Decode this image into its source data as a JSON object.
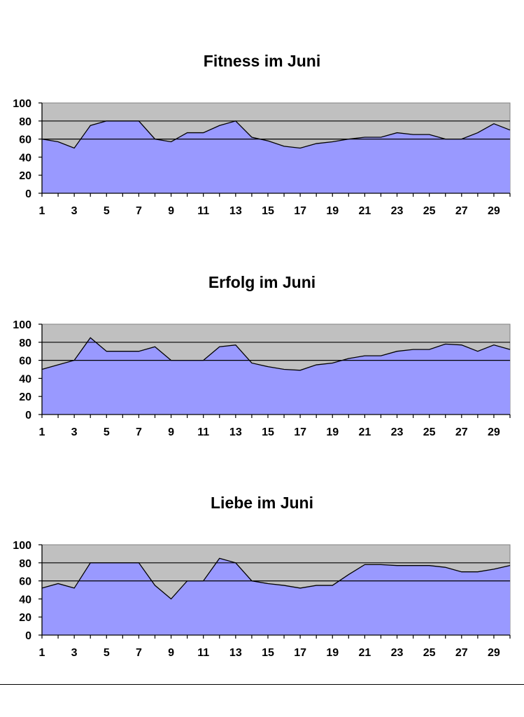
{
  "chart_data": [
    {
      "type": "area",
      "title": "Fitness im Juni",
      "x": [
        1,
        2,
        3,
        4,
        5,
        6,
        7,
        8,
        9,
        10,
        11,
        12,
        13,
        14,
        15,
        16,
        17,
        18,
        19,
        20,
        21,
        22,
        23,
        24,
        25,
        26,
        27,
        28,
        29,
        30
      ],
      "x_tick_labels": [
        "1",
        "3",
        "5",
        "7",
        "9",
        "11",
        "13",
        "15",
        "17",
        "19",
        "21",
        "23",
        "25",
        "27",
        "29"
      ],
      "y_tick_labels": [
        "0",
        "20",
        "40",
        "60",
        "80",
        "100"
      ],
      "ylim": [
        0,
        100
      ],
      "series": [
        {
          "values": [
            60,
            57,
            50,
            75,
            80,
            80,
            80,
            60,
            57,
            67,
            67,
            75,
            80,
            62,
            58,
            52,
            50,
            55,
            57,
            60,
            62,
            62,
            67,
            65,
            65,
            60,
            60,
            67,
            77,
            70
          ]
        }
      ],
      "reference_lines": [
        60,
        80
      ],
      "colors": {
        "area": "#9999ff",
        "plot_bg": "#c0c0c0"
      }
    },
    {
      "type": "area",
      "title": "Erfolg im Juni",
      "x": [
        1,
        2,
        3,
        4,
        5,
        6,
        7,
        8,
        9,
        10,
        11,
        12,
        13,
        14,
        15,
        16,
        17,
        18,
        19,
        20,
        21,
        22,
        23,
        24,
        25,
        26,
        27,
        28,
        29,
        30
      ],
      "x_tick_labels": [
        "1",
        "3",
        "5",
        "7",
        "9",
        "11",
        "13",
        "15",
        "17",
        "19",
        "21",
        "23",
        "25",
        "27",
        "29"
      ],
      "y_tick_labels": [
        "0",
        "20",
        "40",
        "60",
        "80",
        "100"
      ],
      "ylim": [
        0,
        100
      ],
      "series": [
        {
          "values": [
            50,
            55,
            60,
            85,
            70,
            70,
            70,
            75,
            60,
            60,
            60,
            75,
            77,
            57,
            53,
            50,
            49,
            55,
            57,
            62,
            65,
            65,
            70,
            72,
            72,
            78,
            77,
            70,
            77,
            72
          ]
        }
      ],
      "reference_lines": [
        60,
        80
      ],
      "colors": {
        "area": "#9999ff",
        "plot_bg": "#c0c0c0"
      }
    },
    {
      "type": "area",
      "title": "Liebe im Juni",
      "x": [
        1,
        2,
        3,
        4,
        5,
        6,
        7,
        8,
        9,
        10,
        11,
        12,
        13,
        14,
        15,
        16,
        17,
        18,
        19,
        20,
        21,
        22,
        23,
        24,
        25,
        26,
        27,
        28,
        29,
        30
      ],
      "x_tick_labels": [
        "1",
        "3",
        "5",
        "7",
        "9",
        "11",
        "13",
        "15",
        "17",
        "19",
        "21",
        "23",
        "25",
        "27",
        "29"
      ],
      "y_tick_labels": [
        "0",
        "20",
        "40",
        "60",
        "80",
        "100"
      ],
      "ylim": [
        0,
        100
      ],
      "series": [
        {
          "values": [
            52,
            57,
            52,
            80,
            80,
            80,
            80,
            55,
            40,
            60,
            60,
            85,
            80,
            60,
            57,
            55,
            52,
            55,
            55,
            67,
            78,
            78,
            77,
            77,
            77,
            75,
            70,
            70,
            73,
            77
          ]
        }
      ],
      "reference_lines": [
        60,
        80
      ],
      "colors": {
        "area": "#9999ff",
        "plot_bg": "#c0c0c0"
      }
    }
  ]
}
